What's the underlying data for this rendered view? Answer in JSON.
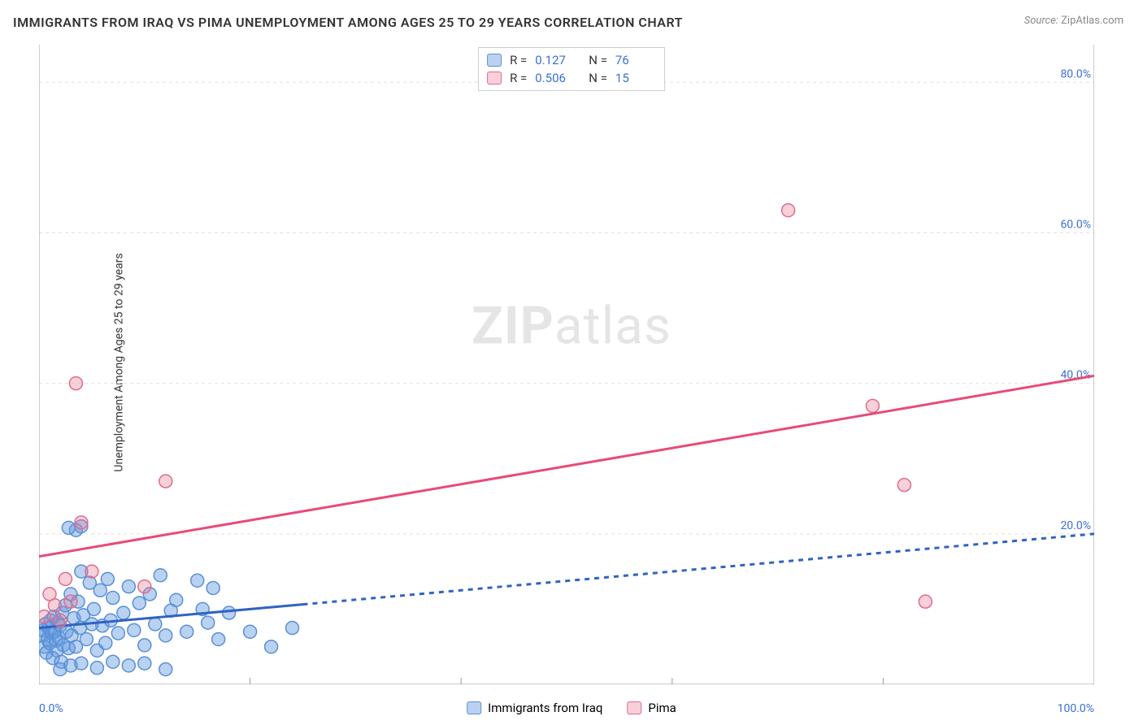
{
  "title": "IMMIGRANTS FROM IRAQ VS PIMA UNEMPLOYMENT AMONG AGES 25 TO 29 YEARS CORRELATION CHART",
  "source_label": "Source:",
  "source_value": "ZipAtlas.com",
  "ylabel": "Unemployment Among Ages 25 to 29 years",
  "watermark": {
    "bold": "ZIP",
    "rest": "atlas"
  },
  "chart": {
    "type": "scatter",
    "background_color": "#ffffff",
    "grid_color": "#e0e0e0",
    "axis_color": "#999999",
    "xlim": [
      0,
      100
    ],
    "ylim": [
      0,
      85
    ],
    "xticks": {
      "min_label": "0.0%",
      "max_label": "100.0%"
    },
    "yticks": [
      {
        "value": 20,
        "label": "20.0%"
      },
      {
        "value": 40,
        "label": "40.0%"
      },
      {
        "value": 60,
        "label": "60.0%"
      },
      {
        "value": 80,
        "label": "80.0%"
      }
    ],
    "xgrid_values": [
      20,
      40,
      60,
      80,
      100
    ],
    "series": [
      {
        "name": "Immigrants from Iraq",
        "color_fill": "rgba(99,155,224,0.45)",
        "color_stroke": "#5a8fd6",
        "marker_radius": 8,
        "R": "0.127",
        "N": "76",
        "trend": {
          "color": "#2f63c4",
          "width": 3,
          "solid_to_x": 25,
          "y_start": 7.5,
          "y_end": 20,
          "dash": "6,6"
        },
        "points": [
          [
            0.3,
            6.5
          ],
          [
            0.4,
            7.2
          ],
          [
            0.5,
            5.0
          ],
          [
            0.6,
            8.0
          ],
          [
            0.7,
            4.2
          ],
          [
            0.8,
            6.0
          ],
          [
            0.9,
            7.5
          ],
          [
            1.0,
            5.5
          ],
          [
            1.1,
            8.5
          ],
          [
            1.2,
            6.8
          ],
          [
            1.3,
            3.5
          ],
          [
            1.4,
            9.0
          ],
          [
            1.5,
            7.0
          ],
          [
            1.6,
            5.8
          ],
          [
            1.7,
            4.5
          ],
          [
            1.8,
            8.2
          ],
          [
            1.9,
            6.2
          ],
          [
            2.0,
            7.8
          ],
          [
            2.1,
            3.0
          ],
          [
            2.2,
            9.5
          ],
          [
            2.3,
            5.2
          ],
          [
            2.5,
            10.5
          ],
          [
            2.6,
            7.0
          ],
          [
            2.8,
            4.8
          ],
          [
            3.0,
            12.0
          ],
          [
            3.1,
            6.5
          ],
          [
            3.3,
            8.8
          ],
          [
            3.5,
            5.0
          ],
          [
            3.7,
            11.0
          ],
          [
            3.9,
            7.5
          ],
          [
            4.0,
            15.0
          ],
          [
            4.2,
            9.2
          ],
          [
            4.5,
            6.0
          ],
          [
            4.8,
            13.5
          ],
          [
            5.0,
            8.0
          ],
          [
            5.2,
            10.0
          ],
          [
            5.5,
            4.5
          ],
          [
            5.8,
            12.5
          ],
          [
            6.0,
            7.8
          ],
          [
            6.3,
            5.5
          ],
          [
            6.5,
            14.0
          ],
          [
            6.8,
            8.5
          ],
          [
            7.0,
            11.5
          ],
          [
            7.5,
            6.8
          ],
          [
            8.0,
            9.5
          ],
          [
            8.5,
            13.0
          ],
          [
            9.0,
            7.2
          ],
          [
            9.5,
            10.8
          ],
          [
            10.0,
            5.2
          ],
          [
            10.5,
            12.0
          ],
          [
            11.0,
            8.0
          ],
          [
            11.5,
            14.5
          ],
          [
            12.0,
            6.5
          ],
          [
            12.5,
            9.8
          ],
          [
            13.0,
            11.2
          ],
          [
            14.0,
            7.0
          ],
          [
            15.0,
            13.8
          ],
          [
            15.5,
            10.0
          ],
          [
            16.0,
            8.2
          ],
          [
            16.5,
            12.8
          ],
          [
            17.0,
            6.0
          ],
          [
            18.0,
            9.5
          ],
          [
            20.0,
            7.0
          ],
          [
            22.0,
            5.0
          ],
          [
            24.0,
            7.5
          ],
          [
            2.0,
            2.0
          ],
          [
            3.0,
            2.5
          ],
          [
            4.0,
            2.8
          ],
          [
            5.5,
            2.2
          ],
          [
            7.0,
            3.0
          ],
          [
            8.5,
            2.5
          ],
          [
            10.0,
            2.8
          ],
          [
            12.0,
            2.0
          ],
          [
            3.5,
            20.5
          ],
          [
            4.0,
            21.0
          ],
          [
            2.8,
            20.8
          ]
        ]
      },
      {
        "name": "Pima",
        "color_fill": "rgba(232,120,150,0.35)",
        "color_stroke": "#e06c8c",
        "marker_radius": 8,
        "R": "0.506",
        "N": "15",
        "trend": {
          "color": "#e84a78",
          "width": 3,
          "solid_to_x": 100,
          "y_start": 17,
          "y_end": 41,
          "dash": null
        },
        "points": [
          [
            0.5,
            9.0
          ],
          [
            1.0,
            12.0
          ],
          [
            1.5,
            10.5
          ],
          [
            2.0,
            8.5
          ],
          [
            2.5,
            14.0
          ],
          [
            3.0,
            11.0
          ],
          [
            4.0,
            21.5
          ],
          [
            3.5,
            40.0
          ],
          [
            10.0,
            13.0
          ],
          [
            12.0,
            27.0
          ],
          [
            71.0,
            63.0
          ],
          [
            79.0,
            37.0
          ],
          [
            82.0,
            26.5
          ],
          [
            84.0,
            11.0
          ],
          [
            5.0,
            15.0
          ]
        ]
      }
    ]
  },
  "legend_bottom": [
    {
      "label": "Immigrants from Iraq",
      "fill": "rgba(99,155,224,0.45)",
      "stroke": "#5a8fd6"
    },
    {
      "label": "Pima",
      "fill": "rgba(232,120,150,0.35)",
      "stroke": "#e06c8c"
    }
  ]
}
